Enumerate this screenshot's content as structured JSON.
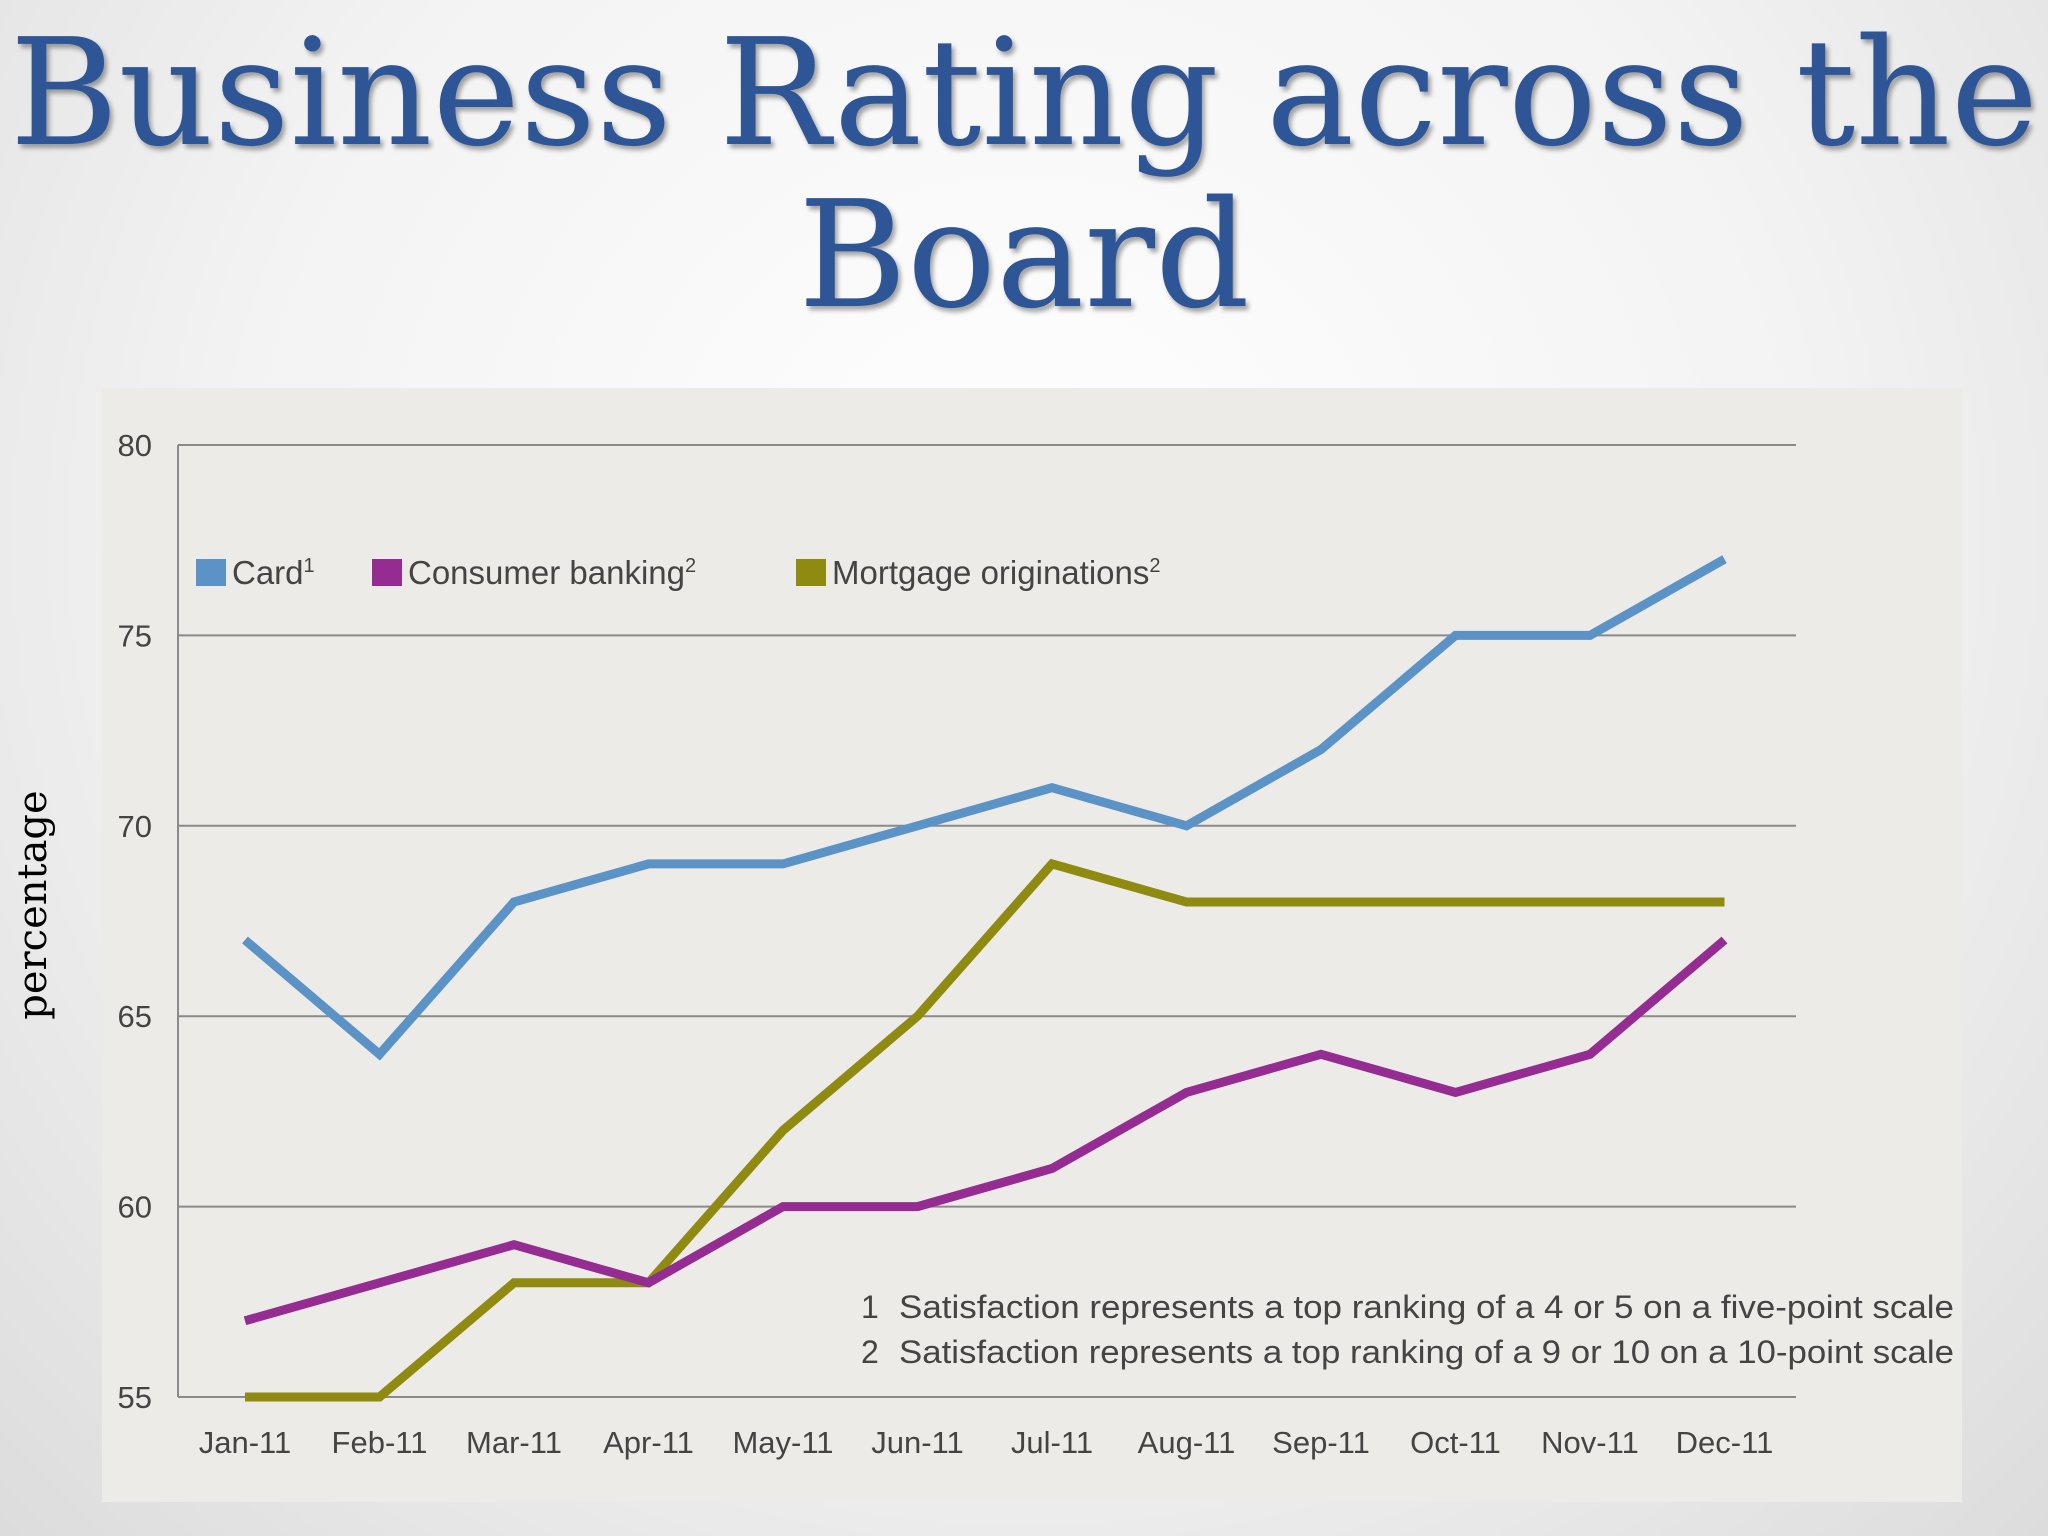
{
  "title": "Business Rating across the Board",
  "ylabel": "percentage",
  "colors": {
    "title": "#2e5596",
    "card": "#5b93c7",
    "consumer_banking": "#952c91",
    "mortgage": "#8f8a10",
    "grid": "#8a8a8a",
    "panel": "#edebe7"
  },
  "chart_data": {
    "type": "line",
    "title": "Business Rating across the Board",
    "xlabel": "",
    "ylabel": "percentage",
    "ylim": [
      55,
      80
    ],
    "yticks": [
      80,
      75,
      70,
      65,
      60,
      55
    ],
    "grid": true,
    "legend_position": "top-left",
    "categories": [
      "Jan-11",
      "Feb-11",
      "Mar-11",
      "Apr-11",
      "May-11",
      "Jun-11",
      "Jul-11",
      "Aug-11",
      "Sep-11",
      "Oct-11",
      "Nov-11",
      "Dec-11"
    ],
    "series": [
      {
        "name": "Card",
        "sup": "1",
        "color": "#5b93c7",
        "values": [
          67,
          64,
          68,
          69,
          69,
          70,
          71,
          70,
          72,
          75,
          75,
          77
        ]
      },
      {
        "name": "Consumer banking",
        "sup": "2",
        "color": "#952c91",
        "values": [
          57,
          58,
          59,
          58,
          60,
          60,
          61,
          63,
          64,
          63,
          64,
          67
        ]
      },
      {
        "name": "Mortgage originations",
        "sup": "2",
        "color": "#8f8a10",
        "values": [
          55,
          55,
          58,
          58,
          62,
          65,
          69,
          68,
          68,
          68,
          68,
          68
        ]
      }
    ],
    "footnotes": [
      {
        "num": "1",
        "text": "Satisfaction represents a top ranking of a 4 or 5 on a five-point scale"
      },
      {
        "num": "2",
        "text": "Satisfaction represents a top ranking of a 9 or 10 on a 10-point scale"
      }
    ]
  }
}
